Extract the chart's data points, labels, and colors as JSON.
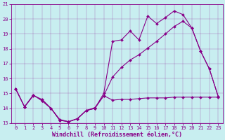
{
  "xlabel": "Windchill (Refroidissement éolien,°C)",
  "xlim": [
    -0.5,
    23.5
  ],
  "ylim": [
    13,
    21
  ],
  "xticks": [
    0,
    1,
    2,
    3,
    4,
    5,
    6,
    7,
    8,
    9,
    10,
    11,
    12,
    13,
    14,
    15,
    16,
    17,
    18,
    19,
    20,
    21,
    22,
    23
  ],
  "yticks": [
    13,
    14,
    15,
    16,
    17,
    18,
    19,
    20,
    21
  ],
  "bg_color": "#c8eef0",
  "line_color": "#880088",
  "line1_y": [
    15.3,
    14.1,
    14.9,
    14.5,
    14.0,
    13.2,
    13.1,
    13.3,
    13.85,
    14.0,
    15.0,
    18.5,
    18.6,
    19.2,
    18.6,
    20.2,
    19.7,
    20.1,
    20.55,
    20.3,
    19.4,
    17.85,
    16.65,
    14.8
  ],
  "line2_y": [
    15.3,
    14.1,
    14.9,
    14.5,
    14.0,
    13.2,
    13.1,
    13.3,
    13.85,
    14.0,
    14.85,
    14.55,
    14.6,
    14.6,
    14.65,
    14.7,
    14.7,
    14.7,
    14.75,
    14.75,
    14.75,
    14.75,
    14.75,
    14.75
  ],
  "line3_y": [
    15.3,
    14.1,
    14.85,
    14.6,
    14.0,
    13.25,
    13.1,
    13.3,
    13.85,
    14.05,
    14.85,
    16.1,
    16.75,
    17.25,
    17.6,
    18.05,
    18.5,
    19.0,
    19.5,
    19.85,
    19.4,
    17.85,
    16.65,
    14.8
  ],
  "markersize": 2.0,
  "linewidth": 0.8,
  "tick_fontsize": 5.0,
  "label_fontsize": 6.0
}
